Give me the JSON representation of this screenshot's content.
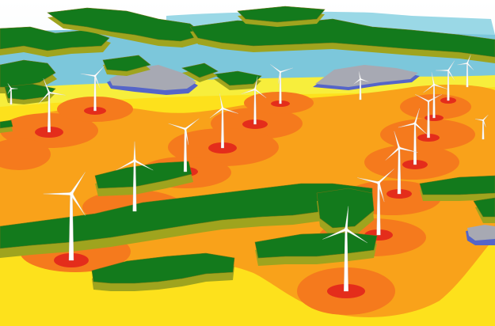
{
  "scene": {
    "subject": "wind-farm-noise-map",
    "colors": {
      "sky": "#ffffff",
      "haze": "#eef3f6",
      "zone_far": "#f7ee3c",
      "zone_outer": "#fde11c",
      "zone_mid": "#f9a21a",
      "zone_inner": "#f57a1d",
      "zone_core": "#ee4c1f",
      "zone_hot": "#e0201b",
      "water_light": "#9ad8e6",
      "water": "#7cc7db",
      "rock_top": "#a7a9b3",
      "rock_side": "#5565c8",
      "land_top": "#137a1c",
      "land_top_light": "#1a8a23",
      "land_side": "#9fa41e",
      "land_side_dark": "#6f7414",
      "turbine": "#ffffff",
      "turbine_shade": "#d6d6d6"
    },
    "turbine_count": 19
  }
}
